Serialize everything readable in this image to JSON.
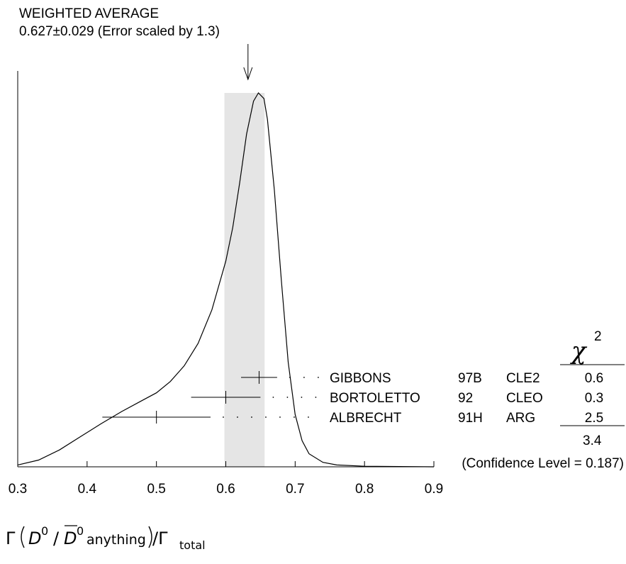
{
  "title": {
    "line1": "WEIGHTED AVERAGE",
    "line2": "0.627±0.029 (Error scaled by 1.3)"
  },
  "chi_header": "χ",
  "chi_header_sup": "2",
  "xaxis": {
    "gamma": "Γ",
    "d": "D",
    "d0": "0",
    "slash": "/",
    "dbar": "D",
    "dbar0": "0",
    "anything": "anything",
    "slash2": "/Γ",
    "total": "total"
  },
  "chi_total": "3.4",
  "confidence_text": "(Confidence Level = 0.187)",
  "chart_data": {
    "type": "ideogram",
    "xlim": [
      0.3,
      0.9
    ],
    "xticks": [
      "0.3",
      "0.4",
      "0.5",
      "0.6",
      "0.7",
      "0.8",
      "0.9"
    ],
    "weighted_average": {
      "value": 0.627,
      "error": 0.029,
      "scale_factor": 1.3
    },
    "measurements": [
      {
        "author": "GIBBONS",
        "year": "97B",
        "experiment": "CLE2",
        "value": 0.648,
        "low": 0.622,
        "high": 0.674,
        "chi2": "0.6"
      },
      {
        "author": "BORTOLETTO",
        "year": "92",
        "experiment": "CLEO",
        "value": 0.6,
        "low": 0.55,
        "high": 0.65,
        "chi2": "0.3"
      },
      {
        "author": "ALBRECHT",
        "year": "91H",
        "experiment": "ARG",
        "value": 0.5,
        "low": 0.422,
        "high": 0.578,
        "chi2": "2.5"
      }
    ],
    "ideogram_curve": [
      [
        0.3,
        0.005
      ],
      [
        0.33,
        0.018
      ],
      [
        0.36,
        0.045
      ],
      [
        0.39,
        0.08
      ],
      [
        0.42,
        0.115
      ],
      [
        0.45,
        0.148
      ],
      [
        0.48,
        0.178
      ],
      [
        0.5,
        0.198
      ],
      [
        0.52,
        0.228
      ],
      [
        0.54,
        0.27
      ],
      [
        0.56,
        0.33
      ],
      [
        0.58,
        0.42
      ],
      [
        0.6,
        0.55
      ],
      [
        0.61,
        0.64
      ],
      [
        0.62,
        0.76
      ],
      [
        0.63,
        0.89
      ],
      [
        0.64,
        0.978
      ],
      [
        0.647,
        1.0
      ],
      [
        0.655,
        0.985
      ],
      [
        0.66,
        0.93
      ],
      [
        0.67,
        0.74
      ],
      [
        0.68,
        0.5
      ],
      [
        0.69,
        0.28
      ],
      [
        0.7,
        0.14
      ],
      [
        0.71,
        0.07
      ],
      [
        0.72,
        0.035
      ],
      [
        0.74,
        0.012
      ],
      [
        0.76,
        0.005
      ],
      [
        0.8,
        0.0015
      ],
      [
        0.9,
        0.0
      ]
    ]
  }
}
